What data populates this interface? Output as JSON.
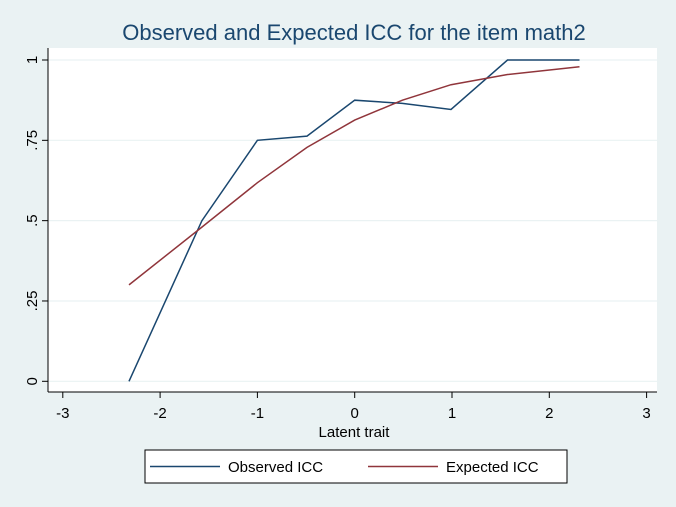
{
  "chart_data": {
    "type": "line",
    "title": "Observed and Expected ICC for the item math2",
    "xlabel": "Latent trait",
    "ylabel": "",
    "xlim": [
      -3,
      3
    ],
    "ylim": [
      0,
      1
    ],
    "xticks": [
      -3,
      -2,
      -1,
      0,
      1,
      2,
      3
    ],
    "xtick_labels": [
      "-3",
      "-2",
      "-1",
      "0",
      "1",
      "2",
      "3"
    ],
    "yticks": [
      0,
      0.25,
      0.5,
      0.75,
      1
    ],
    "ytick_labels": [
      "0",
      ".25",
      ".5",
      ".75",
      "1"
    ],
    "grid": true,
    "legend_position": "bottom",
    "x": [
      -2.32,
      -1.57,
      -1.0,
      -0.49,
      0.0,
      0.49,
      0.99,
      1.57,
      2.31
    ],
    "series": [
      {
        "name": "Observed ICC",
        "color": "#1a476f",
        "values": [
          0,
          0.5,
          0.75,
          0.763,
          0.875,
          0.865,
          0.846,
          1,
          1
        ]
      },
      {
        "name": "Expected ICC",
        "color": "#90353b",
        "values": [
          0.3,
          0.48,
          0.618,
          0.728,
          0.813,
          0.875,
          0.923,
          0.955,
          0.979
        ]
      }
    ]
  }
}
